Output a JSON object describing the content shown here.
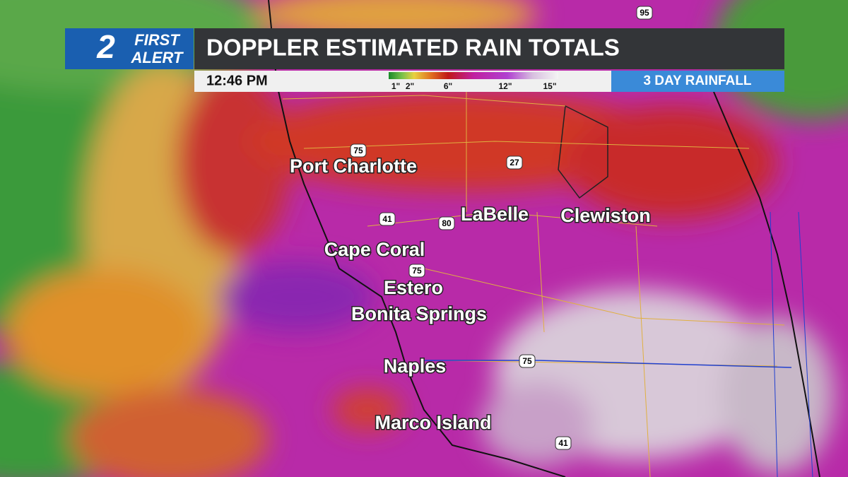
{
  "header": {
    "logo": {
      "number": "2",
      "line1": "FIRST",
      "line2": "ALERT"
    },
    "title": "DOPPLER ESTIMATED RAIN TOTALS",
    "time": "12:46 PM",
    "tab": "3 DAY RAINFALL"
  },
  "legend": {
    "labels": [
      "1\"",
      "2\"",
      "6\"",
      "12\"",
      "15\""
    ]
  },
  "cities": [
    "Port Charlotte",
    "LaBelle",
    "Clewiston",
    "Cape Coral",
    "Estero",
    "Bonita Springs",
    "Naples",
    "Marco Island"
  ],
  "shields": [
    "95",
    "75",
    "27",
    "41",
    "80",
    "75",
    "75",
    "41"
  ]
}
